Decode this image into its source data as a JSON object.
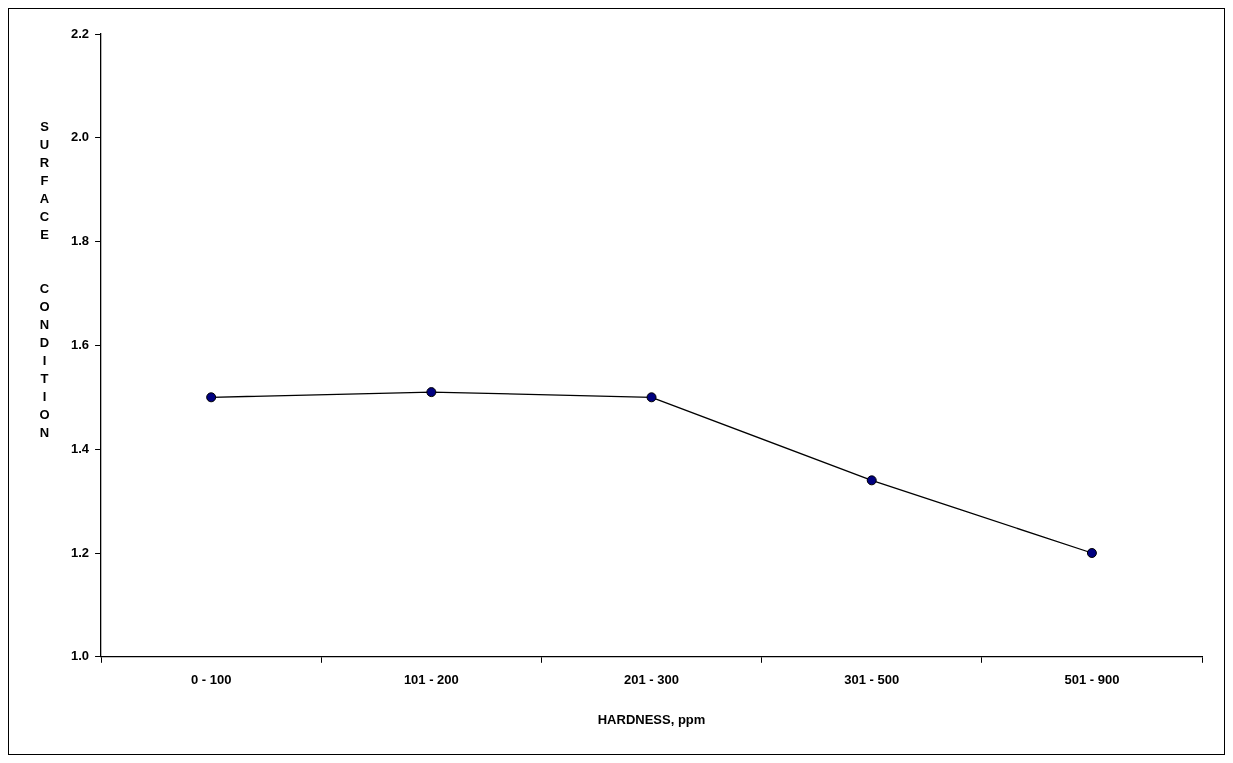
{
  "chart_data": {
    "type": "line",
    "xlabel": "HARDNESS, ppm",
    "ylabel": "SURFACE  CONDITION",
    "categories": [
      "0 - 100",
      "101 - 200",
      "201 - 300",
      "301 - 500",
      "501 - 900"
    ],
    "series": [
      {
        "color": "#000080",
        "values": [
          1.5,
          1.51,
          1.5,
          1.34,
          1.2
        ]
      }
    ],
    "ylim": [
      1.0,
      2.2
    ],
    "yticks": [
      {
        "value": 1.0,
        "label": "1.0"
      },
      {
        "value": 1.2,
        "label": "1.2"
      },
      {
        "value": 1.4,
        "label": "1.4"
      },
      {
        "value": 1.6,
        "label": "1.6"
      },
      {
        "value": 1.8,
        "label": "1.8"
      },
      {
        "value": 2.0,
        "label": "2.0"
      },
      {
        "value": 2.2,
        "label": "2.2"
      }
    ],
    "grid": false,
    "legend": false,
    "marker": "circle",
    "line_style": "solid"
  }
}
